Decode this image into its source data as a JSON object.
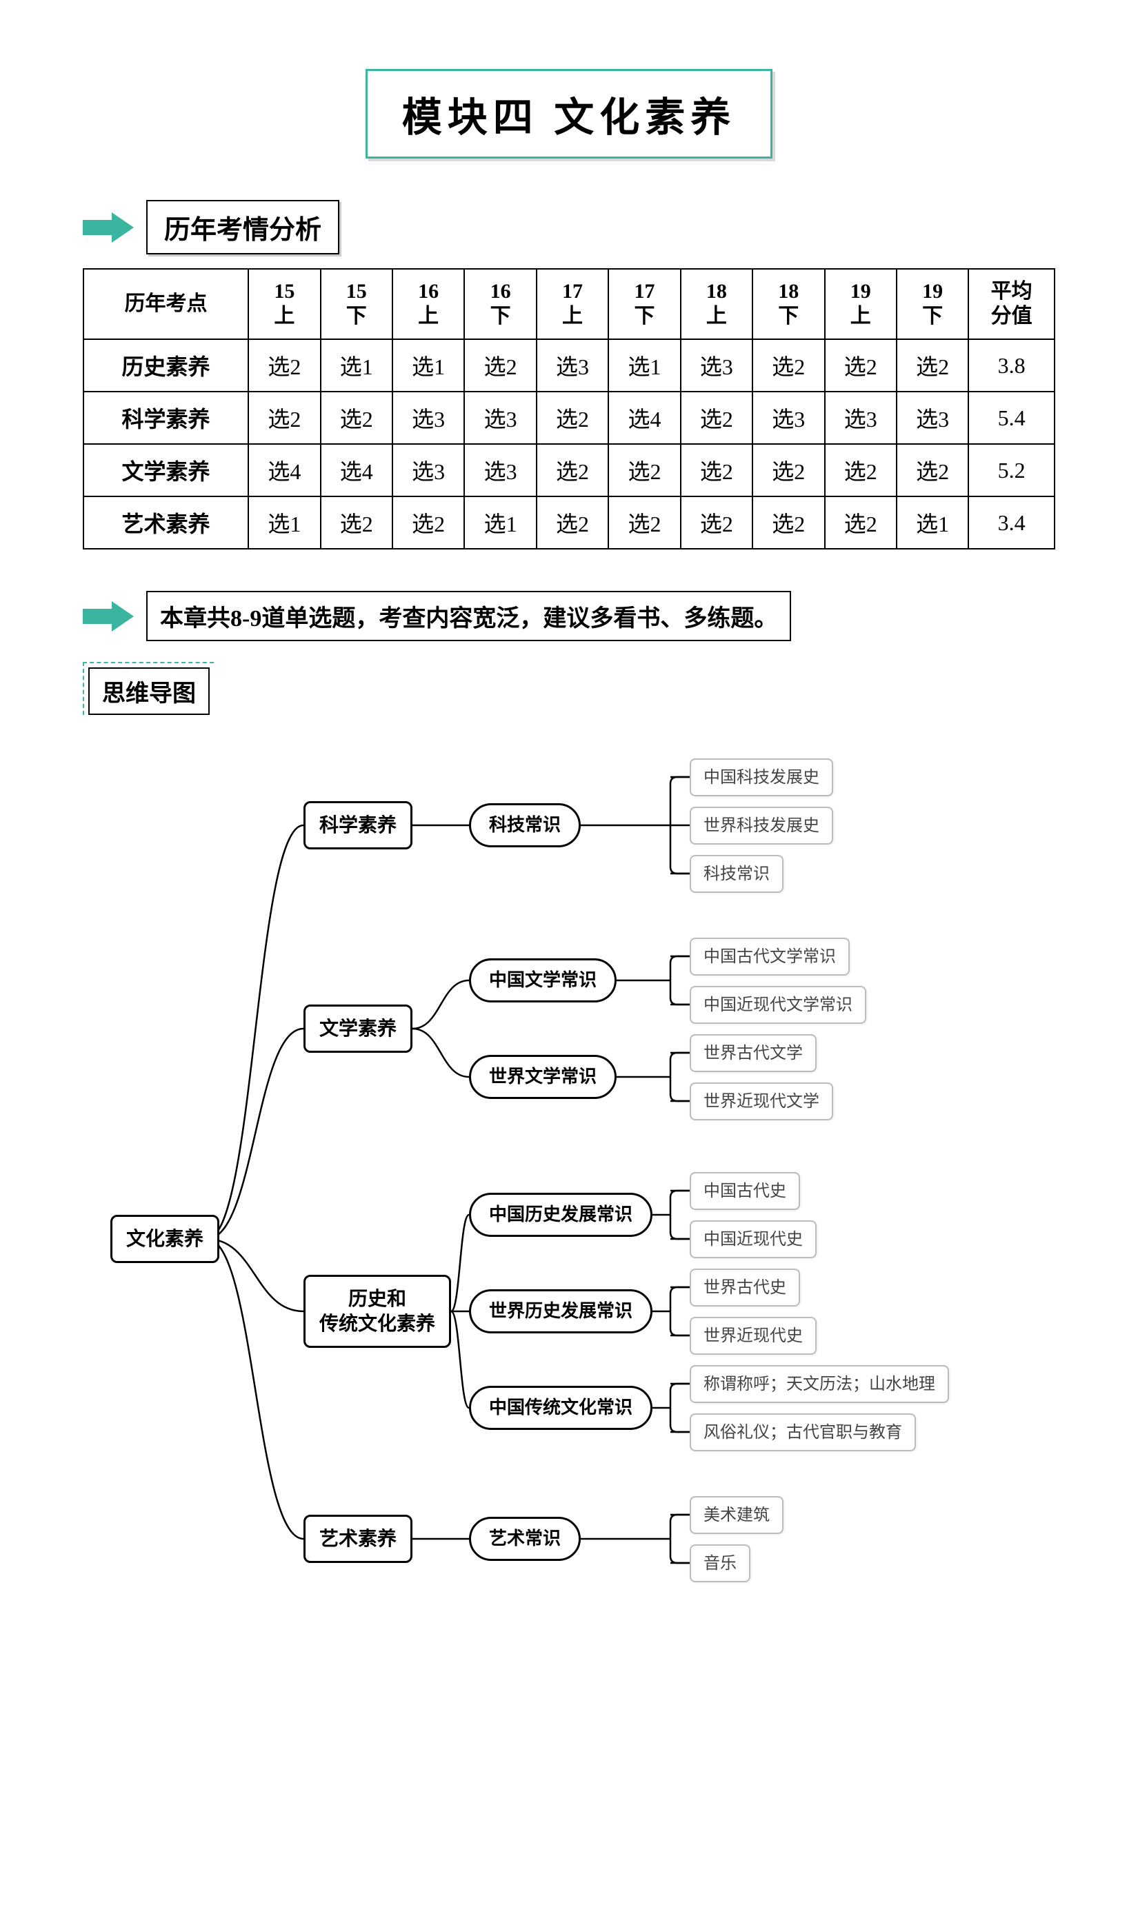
{
  "title": "模块四 文化素养",
  "section1_label": "历年考情分析",
  "table": {
    "row_header_label": "历年考点",
    "avg_label": "平均\n分值",
    "col_headers": [
      "15\n上",
      "15\n下",
      "16\n上",
      "16\n下",
      "17\n上",
      "17\n下",
      "18\n上",
      "18\n下",
      "19\n上",
      "19\n下"
    ],
    "rows": [
      {
        "label": "历史素养",
        "cells": [
          "选2",
          "选1",
          "选1",
          "选2",
          "选3",
          "选1",
          "选3",
          "选2",
          "选2",
          "选2"
        ],
        "avg": "3.8"
      },
      {
        "label": "科学素养",
        "cells": [
          "选2",
          "选2",
          "选3",
          "选3",
          "选2",
          "选4",
          "选2",
          "选3",
          "选3",
          "选3"
        ],
        "avg": "5.4"
      },
      {
        "label": "文学素养",
        "cells": [
          "选4",
          "选4",
          "选3",
          "选3",
          "选2",
          "选2",
          "选2",
          "选2",
          "选2",
          "选2"
        ],
        "avg": "5.2"
      },
      {
        "label": "艺术素养",
        "cells": [
          "选1",
          "选2",
          "选2",
          "选1",
          "选2",
          "选2",
          "选2",
          "选2",
          "选2",
          "选1"
        ],
        "avg": "3.4"
      }
    ]
  },
  "note_text": "本章共8-9道单选题，考查内容宽泛，建议多看书、多练题。",
  "mindmap_label": "思维导图",
  "mindmap": {
    "root": "文化素养",
    "branches": [
      {
        "label": "科学素养",
        "subs": [
          {
            "label": "科技常识",
            "leaves": [
              "中国科技发展史",
              "世界科技发展史",
              "科技常识"
            ]
          }
        ]
      },
      {
        "label": "文学素养",
        "subs": [
          {
            "label": "中国文学常识",
            "leaves": [
              "中国古代文学常识",
              "中国近现代文学常识"
            ]
          },
          {
            "label": "世界文学常识",
            "leaves": [
              "世界古代文学",
              "世界近现代文学"
            ]
          }
        ]
      },
      {
        "label": "历史和\n传统文化素养",
        "subs": [
          {
            "label": "中国历史发展常识",
            "leaves": [
              "中国古代史",
              "中国近现代史"
            ]
          },
          {
            "label": "世界历史发展常识",
            "leaves": [
              "世界古代史",
              "世界近现代史"
            ]
          },
          {
            "label": "中国传统文化常识",
            "leaves": [
              "称谓称呼；天文历法；山水地理",
              "风俗礼仪；古代官职与教育"
            ]
          }
        ]
      },
      {
        "label": "艺术素养",
        "subs": [
          {
            "label": "艺术常识",
            "leaves": [
              "美术建筑",
              "音乐"
            ]
          }
        ]
      }
    ]
  },
  "colors": {
    "accent": "#3cb5a0",
    "leaf_border": "#bbbbbb",
    "text": "#000000",
    "bg": "#ffffff"
  }
}
